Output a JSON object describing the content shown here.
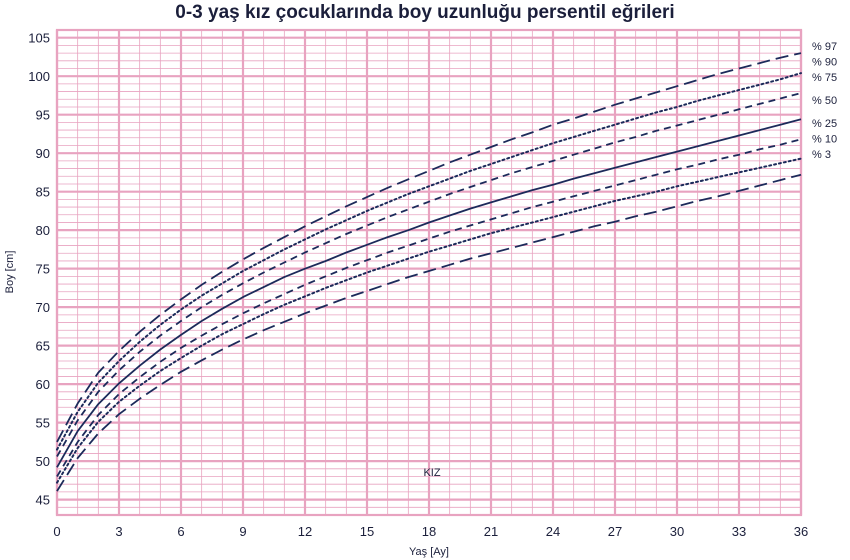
{
  "chart_data": {
    "type": "line",
    "title": "0-3 yaş kız çocuklarında boy uzunluğu persentil eğrileri",
    "xlabel": "Yaş [Ay]",
    "ylabel": "Boy [cm]",
    "xlim": [
      0,
      36
    ],
    "ylim": [
      43,
      106
    ],
    "x_ticks": [
      0,
      3,
      6,
      9,
      12,
      15,
      18,
      21,
      24,
      27,
      30,
      33,
      36
    ],
    "y_ticks": [
      45,
      50,
      55,
      60,
      65,
      70,
      75,
      80,
      85,
      90,
      95,
      100,
      105
    ],
    "annotation": "KIZ",
    "grid": true,
    "colors": {
      "grid": "#e8a3c0",
      "line": "#1c2a5a",
      "title": "#1b1f3b"
    },
    "x": [
      0,
      1,
      2,
      3,
      4,
      5,
      6,
      7,
      8,
      9,
      10,
      11,
      12,
      13,
      14,
      15,
      16,
      17,
      18,
      19,
      20,
      21,
      22,
      23,
      24,
      25,
      26,
      27,
      28,
      29,
      30,
      31,
      32,
      33,
      34,
      35,
      36
    ],
    "series": [
      {
        "name": "% 97",
        "style": "long-dash",
        "values": [
          52.5,
          57.5,
          61.5,
          64.3,
          66.8,
          69.0,
          71.0,
          72.9,
          74.6,
          76.2,
          77.7,
          79.1,
          80.5,
          81.8,
          83.1,
          84.3,
          85.5,
          86.6,
          87.7,
          88.8,
          89.8,
          90.8,
          91.8,
          92.7,
          93.7,
          94.5,
          95.4,
          96.3,
          97.1,
          97.9,
          98.7,
          99.5,
          100.3,
          101.0,
          101.7,
          102.4,
          103.0
        ]
      },
      {
        "name": "% 90",
        "style": "dotted",
        "values": [
          51.5,
          56.4,
          60.2,
          63.0,
          65.5,
          67.7,
          69.7,
          71.5,
          73.1,
          74.7,
          76.1,
          77.5,
          78.8,
          80.1,
          81.3,
          82.5,
          83.6,
          84.7,
          85.7,
          86.7,
          87.7,
          88.6,
          89.5,
          90.4,
          91.3,
          92.1,
          92.9,
          93.7,
          94.5,
          95.3,
          96.0,
          96.8,
          97.5,
          98.2,
          98.9,
          99.6,
          100.4
        ]
      },
      {
        "name": "% 75",
        "style": "dashed",
        "values": [
          50.6,
          55.3,
          59.0,
          61.8,
          64.2,
          66.3,
          68.2,
          70.0,
          71.6,
          73.1,
          74.5,
          75.8,
          77.1,
          78.3,
          79.5,
          80.6,
          81.7,
          82.7,
          83.7,
          84.7,
          85.6,
          86.5,
          87.4,
          88.2,
          89.0,
          89.8,
          90.6,
          91.4,
          92.1,
          92.9,
          93.6,
          94.3,
          95.0,
          95.7,
          96.4,
          97.1,
          97.8
        ]
      },
      {
        "name": "% 50",
        "style": "solid",
        "values": [
          49.2,
          53.9,
          57.4,
          60.1,
          62.4,
          64.5,
          66.4,
          68.2,
          69.8,
          71.3,
          72.6,
          73.9,
          75.0,
          76.0,
          77.1,
          78.1,
          79.1,
          80.0,
          81.0,
          81.9,
          82.8,
          83.6,
          84.4,
          85.2,
          85.9,
          86.7,
          87.4,
          88.1,
          88.8,
          89.5,
          90.2,
          90.9,
          91.6,
          92.3,
          93.0,
          93.7,
          94.4
        ]
      },
      {
        "name": "% 25",
        "style": "dashed",
        "values": [
          48.0,
          52.5,
          56.0,
          58.7,
          60.9,
          62.9,
          64.7,
          66.3,
          67.8,
          69.2,
          70.5,
          71.7,
          72.9,
          74.0,
          75.1,
          76.1,
          77.1,
          78.0,
          78.9,
          79.8,
          80.6,
          81.4,
          82.2,
          83.0,
          83.7,
          84.4,
          85.1,
          85.8,
          86.5,
          87.2,
          87.9,
          88.5,
          89.2,
          89.8,
          90.5,
          91.1,
          91.8
        ]
      },
      {
        "name": "% 10",
        "style": "dotted",
        "values": [
          47.2,
          51.7,
          55.1,
          57.7,
          59.8,
          61.7,
          63.4,
          65.0,
          66.5,
          67.8,
          69.1,
          70.3,
          71.4,
          72.5,
          73.5,
          74.5,
          75.4,
          76.3,
          77.2,
          78.0,
          78.8,
          79.6,
          80.3,
          81.0,
          81.7,
          82.4,
          83.1,
          83.8,
          84.4,
          85.0,
          85.7,
          86.3,
          86.9,
          87.5,
          88.1,
          88.7,
          89.3
        ]
      },
      {
        "name": "% 3",
        "style": "long-dash",
        "values": [
          46.1,
          50.4,
          53.6,
          56.1,
          58.1,
          59.9,
          61.6,
          63.1,
          64.5,
          65.8,
          67.0,
          68.1,
          69.2,
          70.2,
          71.2,
          72.1,
          73.0,
          73.9,
          74.7,
          75.5,
          76.3,
          77.0,
          77.7,
          78.4,
          79.1,
          79.8,
          80.5,
          81.1,
          81.8,
          82.4,
          83.1,
          83.8,
          84.4,
          85.1,
          85.8,
          86.5,
          87.2
        ]
      }
    ],
    "series_label_values": [
      103.9,
      101.9,
      99.9,
      96.9,
      93.9,
      91.9,
      89.9
    ]
  }
}
